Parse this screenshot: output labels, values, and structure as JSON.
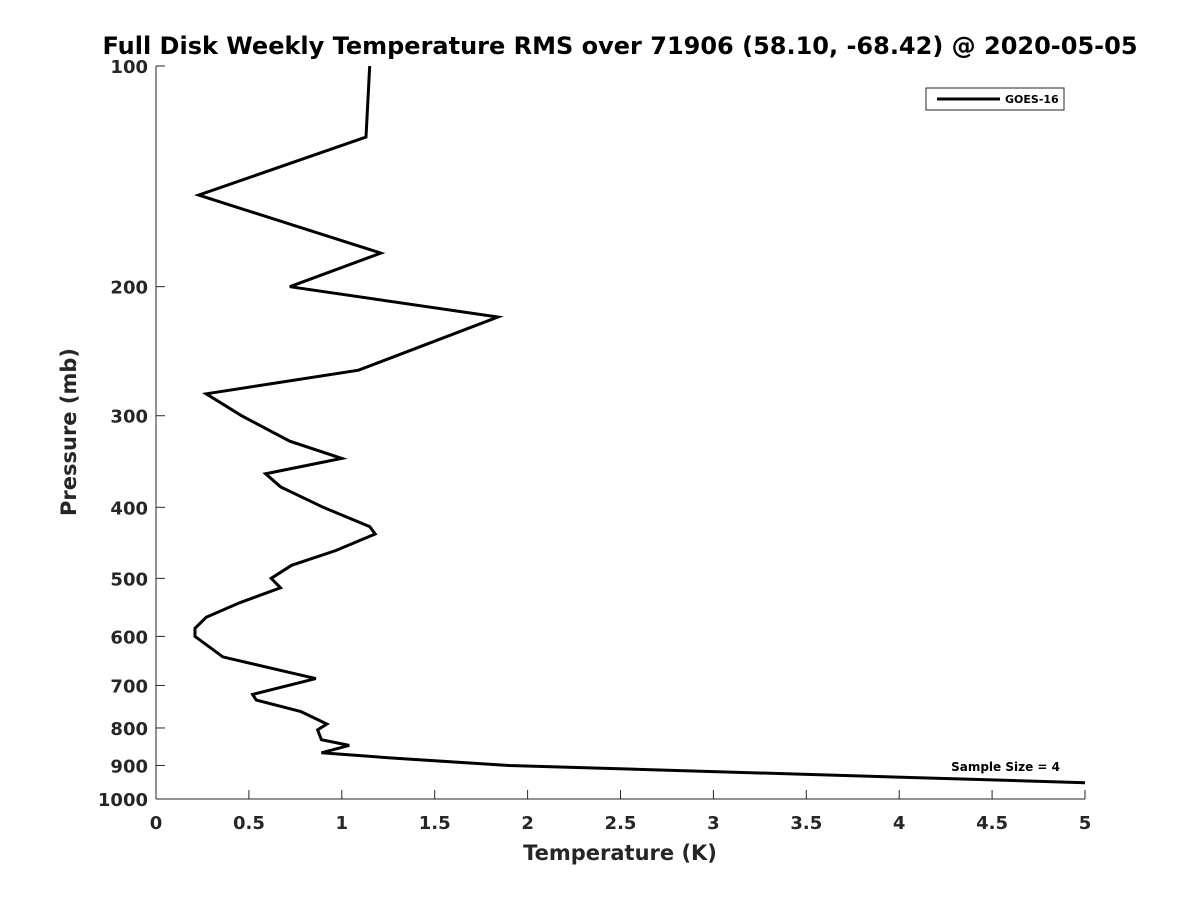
{
  "chart_data": {
    "type": "line",
    "title": "Full Disk Weekly Temperature RMS over 71906 (58.10, -68.42) @ 2020-05-05",
    "xlabel": "Temperature (K)",
    "ylabel": "Pressure (mb)",
    "xlim": [
      0,
      5
    ],
    "ylim": [
      100,
      1000
    ],
    "y_scale": "log",
    "y_reversed": true,
    "grid": false,
    "legend_position": "top-right",
    "x_ticks": [
      "0",
      "0.5",
      "1",
      "1.5",
      "2",
      "2.5",
      "3",
      "3.5",
      "4",
      "4.5",
      "5"
    ],
    "y_ticks": [
      "100",
      "200",
      "300",
      "400",
      "500",
      "600",
      "700",
      "800",
      "900",
      "1000"
    ],
    "series": [
      {
        "name": "GOES-16",
        "color": "#000000",
        "points": [
          {
            "x": 1.15,
            "p": 100
          },
          {
            "x": 1.13,
            "p": 125
          },
          {
            "x": 0.23,
            "p": 150
          },
          {
            "x": 1.21,
            "p": 180
          },
          {
            "x": 0.72,
            "p": 200
          },
          {
            "x": 1.84,
            "p": 220
          },
          {
            "x": 1.45,
            "p": 240
          },
          {
            "x": 1.09,
            "p": 260
          },
          {
            "x": 0.27,
            "p": 280
          },
          {
            "x": 0.46,
            "p": 300
          },
          {
            "x": 0.72,
            "p": 325
          },
          {
            "x": 1.0,
            "p": 343
          },
          {
            "x": 0.59,
            "p": 360
          },
          {
            "x": 0.67,
            "p": 375
          },
          {
            "x": 0.9,
            "p": 400
          },
          {
            "x": 1.15,
            "p": 425
          },
          {
            "x": 1.18,
            "p": 435
          },
          {
            "x": 0.97,
            "p": 458
          },
          {
            "x": 0.73,
            "p": 480
          },
          {
            "x": 0.62,
            "p": 500
          },
          {
            "x": 0.67,
            "p": 515
          },
          {
            "x": 0.45,
            "p": 540
          },
          {
            "x": 0.27,
            "p": 565
          },
          {
            "x": 0.21,
            "p": 585
          },
          {
            "x": 0.21,
            "p": 600
          },
          {
            "x": 0.36,
            "p": 640
          },
          {
            "x": 0.64,
            "p": 665
          },
          {
            "x": 0.86,
            "p": 685
          },
          {
            "x": 0.52,
            "p": 720
          },
          {
            "x": 0.54,
            "p": 733
          },
          {
            "x": 0.78,
            "p": 760
          },
          {
            "x": 0.92,
            "p": 790
          },
          {
            "x": 0.87,
            "p": 805
          },
          {
            "x": 0.89,
            "p": 830
          },
          {
            "x": 1.04,
            "p": 845
          },
          {
            "x": 0.89,
            "p": 865
          },
          {
            "x": 1.29,
            "p": 880
          },
          {
            "x": 1.9,
            "p": 900
          },
          {
            "x": 5.0,
            "p": 950
          }
        ]
      }
    ],
    "annotation": "Sample Size = 4"
  }
}
